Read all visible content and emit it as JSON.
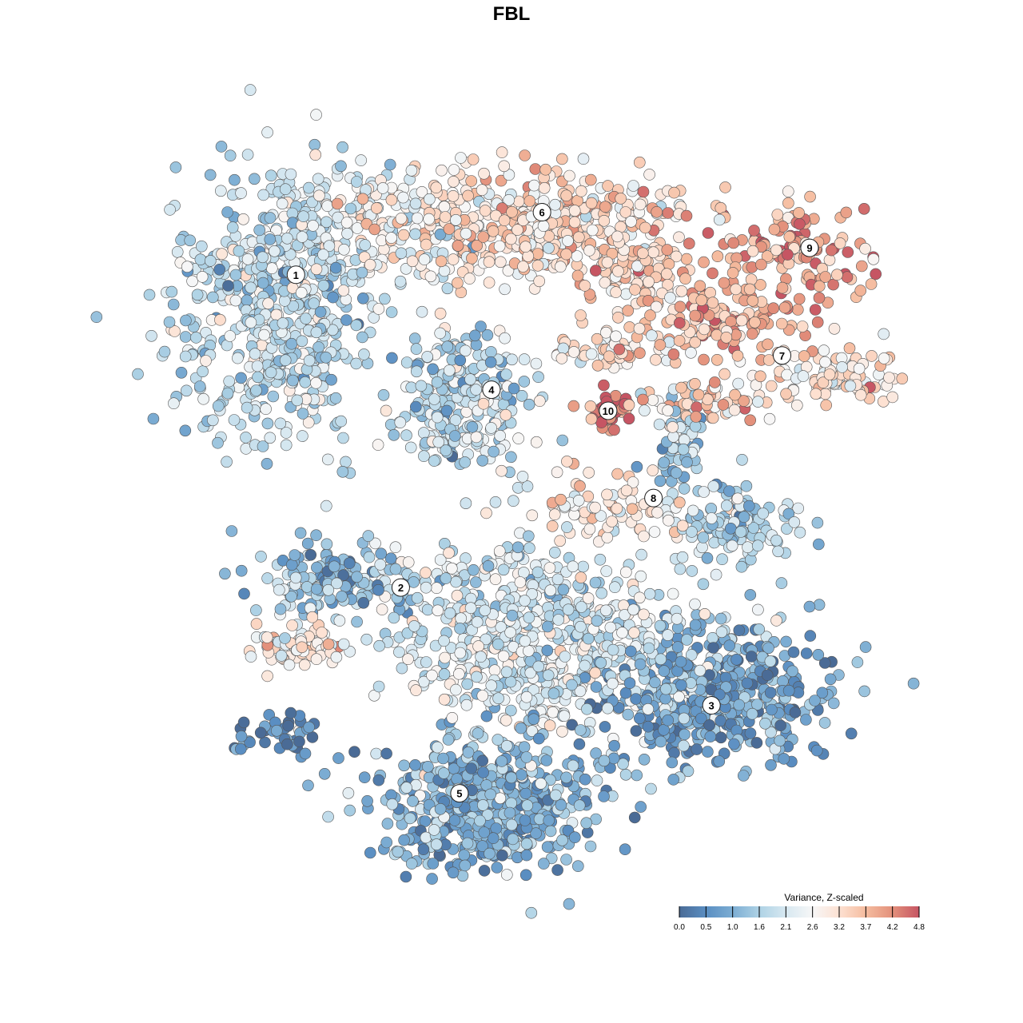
{
  "chart_data": {
    "type": "scatter",
    "title": "FBL",
    "xlabel": "",
    "ylabel": "",
    "xlim": [
      -47,
      53
    ],
    "ylim": [
      -50,
      50
    ],
    "grid": false,
    "legend": {
      "title": "Variance, Z-scaled",
      "placement": "bottom-right",
      "ticks": [
        "0.0",
        "0.5",
        "1.0",
        "1.6",
        "2.1",
        "2.6",
        "3.2",
        "3.7",
        "4.2",
        "4.8"
      ],
      "colors": [
        "#4a6b96",
        "#5a8ec2",
        "#7cadd3",
        "#aed2e5",
        "#d7e8f1",
        "#f7f7f7",
        "#fde1d2",
        "#f5bc9f",
        "#e3907b",
        "#c65563"
      ]
    },
    "point_groups": [
      {
        "x": -32.3,
        "y": 25.8,
        "sx": 7.0,
        "sy": 9.3,
        "n": 520,
        "mean": 1.8
      },
      {
        "x": -21.5,
        "y": 37.9,
        "sx": 7.5,
        "sy": 4.4,
        "n": 220,
        "mean": 2.3
      },
      {
        "x": 2.2,
        "y": 39.0,
        "sx": 10.8,
        "sy": 3.8,
        "n": 400,
        "mean": 3.2
      },
      {
        "x": 17.2,
        "y": 34.6,
        "sx": 4.3,
        "sy": 4.4,
        "n": 120,
        "mean": 3.4
      },
      {
        "x": 38.7,
        "y": 34.6,
        "sx": 5.4,
        "sy": 3.3,
        "n": 120,
        "mean": 4.0
      },
      {
        "x": 28.0,
        "y": 25.8,
        "sx": 5.4,
        "sy": 2.7,
        "n": 120,
        "mean": 3.8
      },
      {
        "x": 43.0,
        "y": 18.1,
        "sx": 4.8,
        "sy": 2.2,
        "n": 100,
        "mean": 3.0
      },
      {
        "x": 25.8,
        "y": 14.8,
        "sx": 5.4,
        "sy": 1.6,
        "n": 60,
        "mean": 3.3
      },
      {
        "x": 12.9,
        "y": 21.4,
        "sx": 5.4,
        "sy": 1.6,
        "n": 60,
        "mean": 3.0
      },
      {
        "x": -6.5,
        "y": 14.8,
        "sx": 4.3,
        "sy": 4.9,
        "n": 250,
        "mean": 1.8
      },
      {
        "x": 13.2,
        "y": 13.7,
        "sx": 1.6,
        "sy": 1.6,
        "n": 40,
        "mean": 4.6
      },
      {
        "x": 22.6,
        "y": 8.2,
        "sx": 1.6,
        "sy": 3.2,
        "n": 50,
        "mean": 1.4
      },
      {
        "x": 30.6,
        "y": -2.2,
        "sx": 3.8,
        "sy": 2.7,
        "n": 120,
        "mean": 1.6
      },
      {
        "x": 12.9,
        "y": -0.5,
        "sx": 6.5,
        "sy": 2.2,
        "n": 80,
        "mean": 3.0
      },
      {
        "x": -23.7,
        "y": -10.4,
        "sx": 5.9,
        "sy": 2.7,
        "n": 150,
        "mean": 1.3
      },
      {
        "x": -29.0,
        "y": -19.2,
        "sx": 3.2,
        "sy": 1.6,
        "n": 70,
        "mean": 3.0
      },
      {
        "x": 4.3,
        "y": -18.1,
        "sx": 10.8,
        "sy": 6.6,
        "n": 700,
        "mean": 2.1
      },
      {
        "x": 28.0,
        "y": -25.8,
        "sx": 7.5,
        "sy": 4.9,
        "n": 450,
        "mean": 0.9
      },
      {
        "x": -3.2,
        "y": -41.2,
        "sx": 7.5,
        "sy": 4.9,
        "n": 500,
        "mean": 1.1
      },
      {
        "x": -32.3,
        "y": -31.3,
        "sx": 3.2,
        "sy": 1.6,
        "n": 40,
        "mean": 0.4
      }
    ],
    "cluster_labels": [
      {
        "label": "1",
        "x": -29.0,
        "y": 32.0
      },
      {
        "label": "2",
        "x": -14.9,
        "y": -11.0
      },
      {
        "label": "3",
        "x": 26.9,
        "y": -27.2
      },
      {
        "label": "4",
        "x": -2.7,
        "y": 16.2
      },
      {
        "label": "5",
        "x": -7.0,
        "y": -39.3
      },
      {
        "label": "6",
        "x": 4.1,
        "y": 40.6
      },
      {
        "label": "7",
        "x": 36.4,
        "y": 20.9
      },
      {
        "label": "8",
        "x": 19.1,
        "y": 1.3
      },
      {
        "label": "9",
        "x": 40.1,
        "y": 35.7
      },
      {
        "label": "10",
        "x": 13.0,
        "y": 13.3
      }
    ]
  }
}
